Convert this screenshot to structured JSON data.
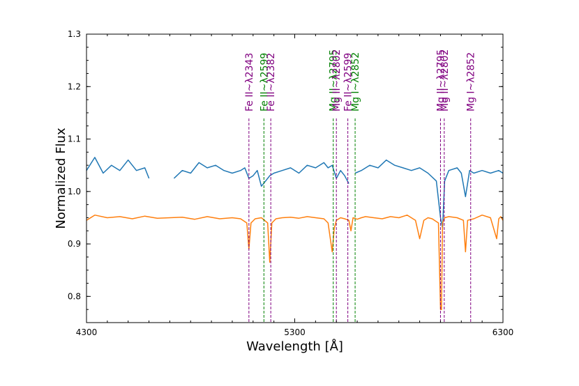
{
  "chart_data": {
    "type": "line",
    "xlabel": "Wavelength [Å]",
    "ylabel": "Normalized Flux",
    "xlim": [
      4300,
      6300
    ],
    "ylim": [
      0.75,
      1.3
    ],
    "x_ticks": [
      4300,
      5300,
      6300
    ],
    "y_ticks": [
      0.8,
      0.9,
      1.0,
      1.1,
      1.2,
      1.3
    ],
    "grid": false,
    "colors": {
      "blue": "#1f77b4",
      "orange": "#ff7f0e",
      "purple": "#800080",
      "green": "#008000"
    },
    "series": [
      {
        "color": "#1f77b4",
        "segments": [
          {
            "x": [
              4300,
              4340,
              4380,
              4420,
              4460,
              4500,
              4540,
              4580,
              4600
            ],
            "y": [
              1.04,
              1.065,
              1.035,
              1.05,
              1.04,
              1.06,
              1.04,
              1.045,
              1.025
            ]
          },
          {
            "x": [
              4720,
              4760,
              4800,
              4840,
              4880,
              4920,
              4960,
              5000,
              5040,
              5060,
              5080,
              5100,
              5120,
              5140,
              5160,
              5180,
              5200,
              5240,
              5280,
              5320,
              5360,
              5400,
              5440,
              5460,
              5480,
              5500,
              5520,
              5540,
              5560
            ],
            "y": [
              1.025,
              1.04,
              1.035,
              1.055,
              1.045,
              1.05,
              1.04,
              1.035,
              1.04,
              1.045,
              1.025,
              1.03,
              1.04,
              1.01,
              1.02,
              1.03,
              1.035,
              1.04,
              1.045,
              1.035,
              1.05,
              1.045,
              1.055,
              1.045,
              1.05,
              1.025,
              1.04,
              1.03,
              1.015
            ]
          },
          {
            "x": [
              5590,
              5620,
              5660,
              5700,
              5740,
              5780,
              5820,
              5860,
              5900,
              5940,
              5980,
              6000,
              6010,
              6020,
              6040,
              6080,
              6100,
              6120,
              6140,
              6160,
              6200,
              6240,
              6280,
              6300
            ],
            "y": [
              1.035,
              1.04,
              1.05,
              1.045,
              1.06,
              1.05,
              1.045,
              1.04,
              1.045,
              1.035,
              1.02,
              0.95,
              0.93,
              1.02,
              1.04,
              1.045,
              1.035,
              0.99,
              1.04,
              1.035,
              1.04,
              1.035,
              1.04,
              1.035
            ]
          }
        ]
      },
      {
        "color": "#ff7f0e",
        "segments": [
          {
            "x": [
              4300,
              4340,
              4400,
              4460,
              4520,
              4580,
              4640,
              4700,
              4760,
              4820,
              4880,
              4940,
              5000,
              5040,
              5070,
              5080,
              5090,
              5110,
              5140,
              5170,
              5180,
              5190,
              5210,
              5240,
              5280,
              5320,
              5360,
              5400,
              5440,
              5460,
              5480,
              5490,
              5500,
              5520,
              5540,
              5560,
              5570,
              5580,
              5600,
              5620,
              5640,
              5680,
              5720,
              5760,
              5800,
              5840,
              5880,
              5900,
              5920,
              5940,
              5960,
              5990,
              6000,
              6005,
              6010,
              6020,
              6040,
              6080,
              6110,
              6120,
              6130,
              6160,
              6200,
              6240,
              6270,
              6280,
              6290,
              6300
            ],
            "y": [
              0.945,
              0.955,
              0.95,
              0.952,
              0.948,
              0.953,
              0.949,
              0.95,
              0.951,
              0.947,
              0.952,
              0.948,
              0.95,
              0.948,
              0.94,
              0.89,
              0.94,
              0.948,
              0.95,
              0.94,
              0.865,
              0.94,
              0.948,
              0.95,
              0.951,
              0.949,
              0.952,
              0.95,
              0.948,
              0.94,
              0.885,
              0.93,
              0.945,
              0.95,
              0.948,
              0.945,
              0.925,
              0.95,
              0.947,
              0.95,
              0.952,
              0.95,
              0.948,
              0.952,
              0.95,
              0.955,
              0.945,
              0.91,
              0.945,
              0.95,
              0.948,
              0.94,
              0.775,
              0.775,
              0.94,
              0.95,
              0.952,
              0.95,
              0.945,
              0.885,
              0.945,
              0.948,
              0.955,
              0.95,
              0.91,
              0.948,
              0.952,
              0.945
            ]
          }
        ]
      }
    ],
    "vlines": [
      {
        "x": 5080,
        "label": "Fe II~λ2343",
        "color": "#800080"
      },
      {
        "x": 5152,
        "label": "Fe II~λ2599",
        "color": "#008000"
      },
      {
        "x": 5185,
        "label": "Fe II~λ2382",
        "color": "#800080"
      },
      {
        "x": 5485,
        "label": "Mg II~λ2795",
        "color": "#008000"
      },
      {
        "x": 5500,
        "label": "Mg II~λ2802",
        "color": "#800080"
      },
      {
        "x": 5555,
        "label": "Fe II~λ2599",
        "color": "#800080"
      },
      {
        "x": 5590,
        "label": "Mg I~λ2852",
        "color": "#008000"
      },
      {
        "x": 6000,
        "label": "Mg II~λ2795",
        "color": "#800080"
      },
      {
        "x": 6018,
        "label": "Mg II~λ2802",
        "color": "#800080"
      },
      {
        "x": 6145,
        "label": "Mg I~λ2852",
        "color": "#800080"
      }
    ]
  }
}
